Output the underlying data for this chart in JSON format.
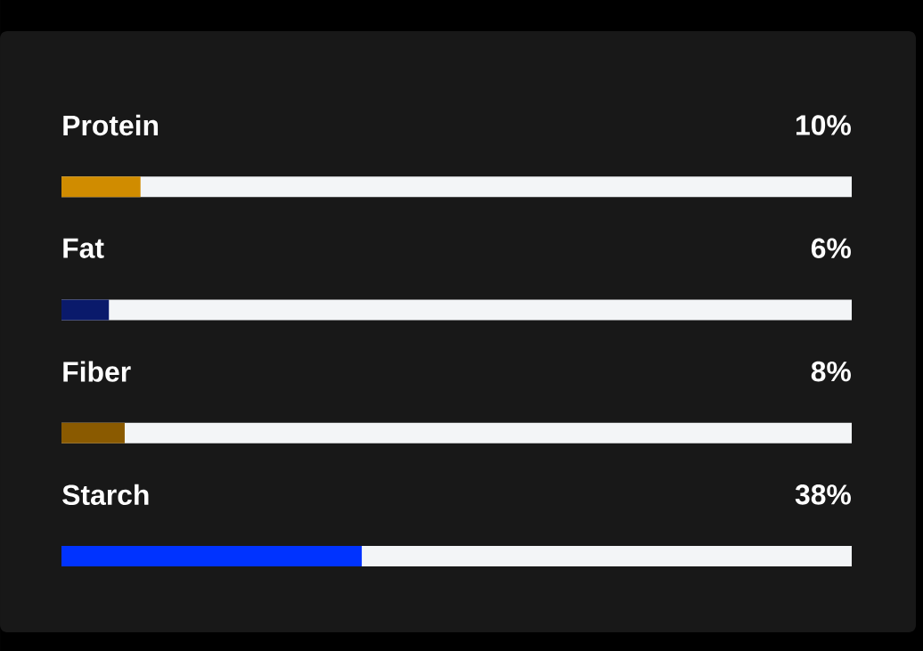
{
  "chart_data": {
    "type": "bar",
    "orientation": "horizontal",
    "categories": [
      "Protein",
      "Fat",
      "Fiber",
      "Starch"
    ],
    "values": [
      10,
      6,
      8,
      38
    ],
    "colors": [
      "#d08c00",
      "#0a1a6b",
      "#8a5a00",
      "#0033ff"
    ],
    "value_labels": [
      "10%",
      "6%",
      "8%",
      "38%"
    ],
    "xlim": [
      0,
      100
    ],
    "tick_labels": false
  }
}
